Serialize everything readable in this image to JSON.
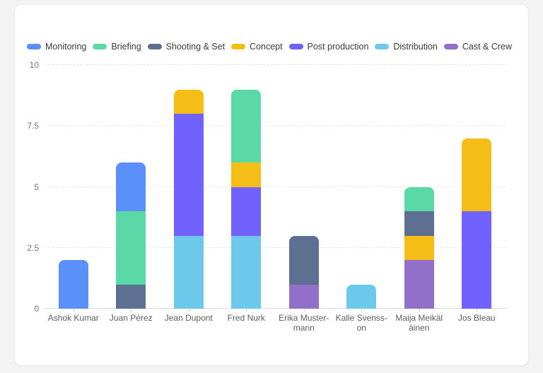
{
  "card": {
    "background": "#ffffff"
  },
  "theme": {
    "page_background": "#f3f3f4",
    "gridline_color": "#e8e8e8",
    "axis_line_color": "#d9d9d9",
    "tick_label_color": "#767676",
    "x_label_color": "#5c5c5c",
    "legend_text_color": "#3a3a3a"
  },
  "chart_data": {
    "type": "bar",
    "stacked": true,
    "title": "",
    "xlabel": "",
    "ylabel": "",
    "ylim": [
      0,
      10
    ],
    "yticks": [
      0,
      2.5,
      5,
      7.5,
      10
    ],
    "ytick_labels": [
      "0",
      "2.5",
      "5",
      "7.5",
      "10"
    ],
    "grid": "dashed-horizontal",
    "legend_position": "top",
    "categories": [
      "Ashok Kumar",
      "Juan Pérez",
      "Jean Dupont",
      "Fred Nurk",
      "Erika Mustermann",
      "Kalle Svensson",
      "Maija Meikäläinen",
      "Jos Bleau"
    ],
    "category_display": [
      "Ashok Kumar",
      "Juan Pérez",
      "Jean Dupont",
      "Fred Nurk",
      "Erika Muster-\nmann",
      "Kalle Svenss-\non",
      "Maija Meikäl\näinen",
      "Jos Bleau"
    ],
    "series": [
      {
        "name": "Monitoring",
        "color": "#5B8FF9",
        "values": [
          2,
          2,
          0,
          0,
          0,
          0,
          0,
          0
        ]
      },
      {
        "name": "Briefing",
        "color": "#5AD8A6",
        "values": [
          0,
          3,
          0,
          3,
          0,
          0,
          1,
          0
        ]
      },
      {
        "name": "Shooting & Set",
        "color": "#5D7092",
        "values": [
          0,
          1,
          0,
          0,
          2,
          0,
          1,
          0
        ]
      },
      {
        "name": "Concept",
        "color": "#F6BD16",
        "values": [
          0,
          0,
          1,
          1,
          0,
          0,
          1,
          3
        ]
      },
      {
        "name": "Post production",
        "color": "#7262FD",
        "values": [
          0,
          0,
          5,
          2,
          0,
          0,
          0,
          4
        ]
      },
      {
        "name": "Distribution",
        "color": "#6DC8EC",
        "values": [
          0,
          0,
          3,
          3,
          0,
          1,
          0,
          0
        ]
      },
      {
        "name": "Cast & Crew",
        "color": "#9270CA",
        "values": [
          0,
          0,
          0,
          0,
          1,
          0,
          2,
          0
        ]
      }
    ],
    "stack_order": [
      "Distribution",
      "Cast & Crew",
      "Post production",
      "Concept",
      "Shooting & Set",
      "Briefing",
      "Monitoring"
    ],
    "totals": [
      2,
      6,
      9,
      9,
      3,
      1,
      5,
      7
    ]
  }
}
